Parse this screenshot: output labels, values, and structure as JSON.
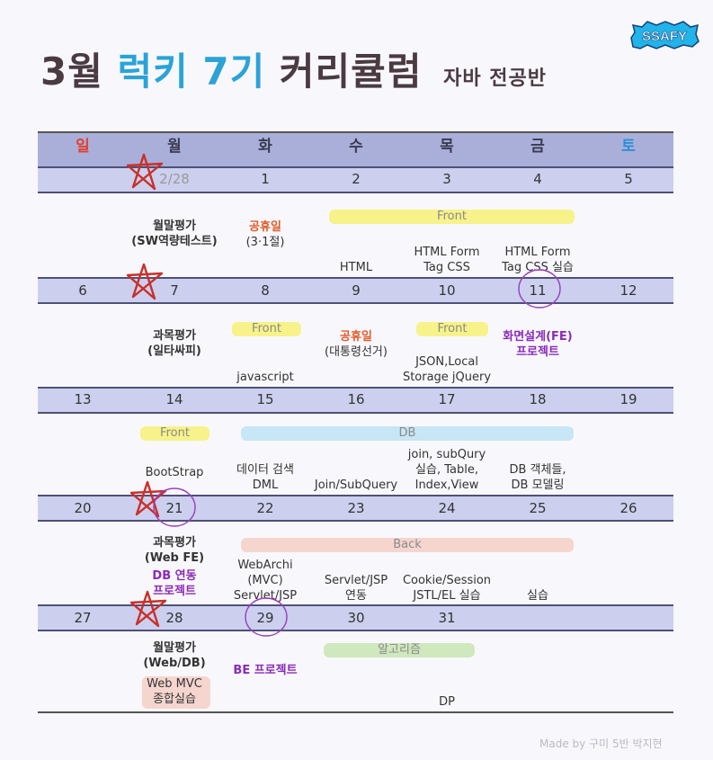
{
  "title": {
    "prefix": "3월",
    "highlight": "럭키 7기",
    "main": "커리큘럼",
    "subtitle": "자바 전공반"
  },
  "logo": {
    "text": "SSAFY"
  },
  "weekdays": [
    "일",
    "월",
    "화",
    "수",
    "목",
    "금",
    "토"
  ],
  "colors": {
    "sunday": "#e2402b",
    "saturday": "#2c8fd8",
    "accent_blue": "#2aa3d8",
    "holiday": "#e35a2a",
    "project": "#8a2bb8"
  },
  "weeks": [
    {
      "dates": [
        "",
        "2/28",
        "1",
        "2",
        "3",
        "4",
        "5"
      ]
    },
    {
      "dates": [
        "6",
        "7",
        "8",
        "9",
        "10",
        "11",
        "12"
      ]
    },
    {
      "dates": [
        "13",
        "14",
        "15",
        "16",
        "17",
        "18",
        "19"
      ]
    },
    {
      "dates": [
        "20",
        "21",
        "22",
        "23",
        "24",
        "25",
        "26"
      ]
    },
    {
      "dates": [
        "27",
        "28",
        "29",
        "30",
        "31",
        "",
        ""
      ]
    }
  ],
  "bands": {
    "w1_front": "Front",
    "w2_front_tue": "Front",
    "w2_front_thu": "Front",
    "w3_front": "Front",
    "w3_db": "DB",
    "w4_back": "Back",
    "w5_algo": "알고리즘"
  },
  "events": {
    "w1_mon_1": "월말평가",
    "w1_mon_2": "(SW역량테스트)",
    "w1_tue_1": "공휴일",
    "w1_tue_2": "(3·1절)",
    "w1_wed": "HTML",
    "w1_thu_1": "HTML Form",
    "w1_thu_2": "Tag CSS",
    "w1_fri_1": "HTML Form",
    "w1_fri_2": "Tag CSS 실습",
    "w2_mon_1": "과목평가",
    "w2_mon_2": "(일타싸피)",
    "w2_tue": "javascript",
    "w2_wed_1": "공휴일",
    "w2_wed_2": "(대통령선거)",
    "w2_thu_1": "JSON,Local",
    "w2_thu_2": "Storage jQuery",
    "w2_fri_1": "화면설계(FE)",
    "w2_fri_2": "프로젝트",
    "w3_mon": "BootStrap",
    "w3_tue_1": "데이터 검색",
    "w3_tue_2": "DML",
    "w3_wed": "Join/SubQuery",
    "w3_thu_1": "join, subQury",
    "w3_thu_2": "실습, Table,",
    "w3_thu_3": "Index,View",
    "w3_fri_1": "DB 객체들,",
    "w3_fri_2": "DB 모델링",
    "w4_mon_1": "과목평가",
    "w4_mon_2": "(Web FE)",
    "w4_mon_3": "DB 연동",
    "w4_mon_4": "프로젝트",
    "w4_tue_1": "WebArchi",
    "w4_tue_2": "(MVC)",
    "w4_tue_3": "Servlet/JSP",
    "w4_wed_1": "Servlet/JSP",
    "w4_wed_2": "연동",
    "w4_thu_1": "Cookie/Session",
    "w4_thu_2": "JSTL/EL 실습",
    "w4_fri": "실습",
    "w5_mon_1": "월말평가",
    "w5_mon_2": "(Web/DB)",
    "w5_mon_3": "Web MVC",
    "w5_mon_4": "종합실습",
    "w5_tue": "BE 프로젝트",
    "w5_thu": "DP"
  },
  "credit": "Made by 구미 5반 박지현"
}
